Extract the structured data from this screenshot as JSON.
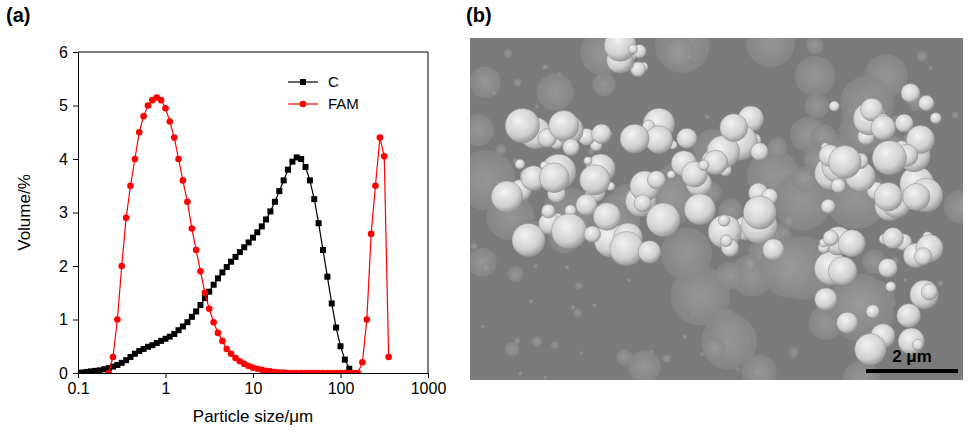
{
  "chart_data": [
    {
      "type": "line",
      "title": "(a)",
      "x_label": "Particle size/μm",
      "y_label": "Volume/%",
      "log": "x",
      "legend": "upper right",
      "xlim": [
        0.1,
        1000
      ],
      "xticks": [
        0.1,
        1,
        10,
        100,
        1000
      ],
      "ylim": [
        0,
        6
      ],
      "yticks": [
        0,
        1,
        2,
        3,
        4,
        5,
        6
      ],
      "series": [
        {
          "name": "C",
          "color": "#000000",
          "marker": "square",
          "line_style": "solid",
          "x": [
            0.1,
            0.112,
            0.126,
            0.141,
            0.158,
            0.178,
            0.2,
            0.224,
            0.251,
            0.282,
            0.316,
            0.355,
            0.398,
            0.447,
            0.501,
            0.562,
            0.631,
            0.708,
            0.794,
            0.891,
            1,
            1.12,
            1.26,
            1.41,
            1.58,
            1.78,
            2,
            2.24,
            2.51,
            2.82,
            3.16,
            3.55,
            3.98,
            4.47,
            5.01,
            5.62,
            6.31,
            7.08,
            7.94,
            8.91,
            10,
            11.2,
            12.6,
            14.1,
            15.8,
            17.8,
            20,
            22.4,
            25.1,
            28.2,
            31.6,
            35.5,
            39.8,
            44.7,
            50.1,
            56.2,
            63.1,
            70.8,
            79.4,
            89.1,
            100,
            112,
            126,
            141
          ],
          "values": [
            0,
            0.01,
            0.02,
            0.03,
            0.04,
            0.05,
            0.07,
            0.09,
            0.12,
            0.15,
            0.19,
            0.24,
            0.3,
            0.36,
            0.41,
            0.45,
            0.49,
            0.52,
            0.56,
            0.6,
            0.64,
            0.68,
            0.73,
            0.8,
            0.87,
            0.95,
            1.05,
            1.15,
            1.27,
            1.4,
            1.52,
            1.65,
            1.77,
            1.88,
            1.98,
            2.08,
            2.17,
            2.26,
            2.35,
            2.44,
            2.53,
            2.63,
            2.74,
            2.87,
            3.02,
            3.2,
            3.4,
            3.6,
            3.8,
            3.95,
            4.03,
            4.0,
            3.85,
            3.6,
            3.25,
            2.8,
            2.3,
            1.8,
            1.3,
            0.85,
            0.5,
            0.25,
            0.08,
            0
          ]
        },
        {
          "name": "FAM",
          "color": "#ff0000",
          "marker": "circle",
          "line_style": "solid",
          "x": [
            0.224,
            0.251,
            0.282,
            0.316,
            0.355,
            0.398,
            0.447,
            0.501,
            0.562,
            0.631,
            0.708,
            0.794,
            0.891,
            1,
            1.12,
            1.26,
            1.41,
            1.58,
            1.78,
            2,
            2.24,
            2.51,
            2.82,
            3.16,
            3.55,
            3.98,
            4.47,
            5.01,
            5.62,
            6.31,
            7.08,
            7.94,
            8.91,
            10,
            11.2,
            12.6,
            14.1,
            15.8,
            17.8,
            20,
            22.4,
            25.1,
            28.2,
            31.6,
            35.5,
            39.8,
            44.7,
            50.1,
            56.2,
            63.1,
            70.8,
            79.4,
            89.1,
            100,
            112,
            126,
            141,
            158,
            178,
            200,
            224,
            251,
            282,
            316,
            355
          ],
          "values": [
            0,
            0.3,
            1.0,
            2.0,
            2.9,
            3.5,
            4.0,
            4.5,
            4.8,
            5.0,
            5.1,
            5.15,
            5.1,
            4.95,
            4.7,
            4.4,
            4.0,
            3.6,
            3.2,
            2.7,
            2.3,
            1.9,
            1.5,
            1.2,
            0.95,
            0.75,
            0.6,
            0.45,
            0.36,
            0.28,
            0.22,
            0.17,
            0.13,
            0.1,
            0.08,
            0.06,
            0.04,
            0.03,
            0.02,
            0.01,
            0.01,
            0,
            0,
            0,
            0,
            0,
            0,
            0,
            0,
            0,
            0,
            0,
            0,
            0,
            0,
            0,
            0,
            0,
            0.2,
            1.0,
            2.6,
            3.5,
            4.4,
            4.05,
            0.3
          ]
        }
      ]
    },
    {
      "type": "image",
      "title": "(b)",
      "annotations": [
        "2 μm"
      ]
    }
  ]
}
